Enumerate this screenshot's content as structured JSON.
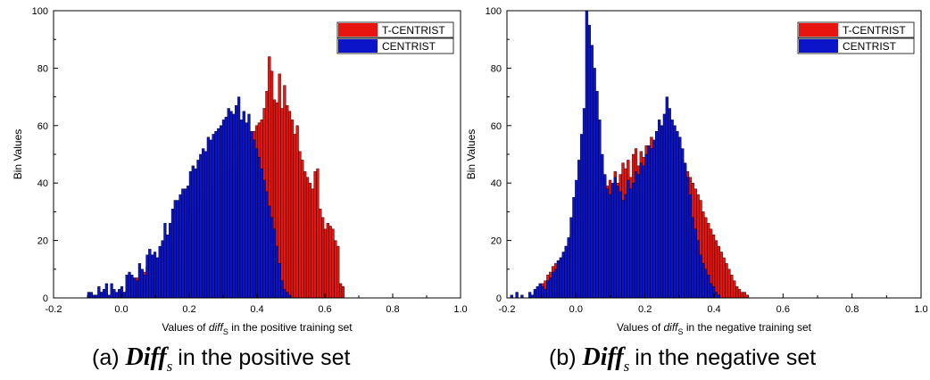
{
  "chart_data": [
    {
      "type": "bar",
      "panel": "a",
      "xlabel_prefix": "Values of ",
      "xlabel_var": "diff",
      "xlabel_sub": "S",
      "xlabel_suffix": " in the positive training set",
      "ylabel": "Bin Values",
      "xlim": [
        -0.2,
        1.0
      ],
      "ylim": [
        0,
        100
      ],
      "xticks": [
        "-0.2",
        "0.0",
        "0.2",
        "0.4",
        "0.6",
        "0.8",
        "1.0"
      ],
      "yticks": [
        "0",
        "20",
        "40",
        "60",
        "80",
        "100"
      ],
      "legend_position": "top-right",
      "bin_start": -0.1,
      "bin_width": 0.0075,
      "series": [
        {
          "name": "T-CENTRIST",
          "color": "#e8140f",
          "values": [
            1,
            1,
            0,
            1,
            0,
            2,
            1,
            2,
            0,
            1,
            0,
            1,
            1,
            2,
            2,
            4,
            3,
            6,
            5,
            7,
            6,
            7,
            9,
            11,
            9,
            12,
            13,
            14,
            13,
            17,
            18,
            19,
            20,
            19,
            22,
            21,
            23,
            24,
            26,
            27,
            28,
            30,
            29,
            31,
            32,
            33,
            34,
            36,
            36,
            38,
            39,
            40,
            41,
            42,
            43,
            44,
            45,
            46,
            47,
            48,
            50,
            52,
            53,
            55,
            57,
            58,
            60,
            61,
            62,
            66,
            72,
            84,
            79,
            69,
            68,
            78,
            66,
            74,
            67,
            65,
            62,
            57,
            60,
            51,
            48,
            44,
            42,
            40,
            38,
            44,
            45,
            31,
            28,
            24,
            26,
            25,
            24,
            20,
            18,
            5,
            4,
            0
          ]
        },
        {
          "name": "CENTRIST",
          "color": "#0b14c8",
          "values": [
            2,
            2,
            1,
            1,
            4,
            2,
            3,
            5,
            1,
            5,
            3,
            2,
            3,
            4,
            2,
            8,
            9,
            8,
            7,
            6,
            12,
            10,
            8,
            15,
            17,
            15,
            16,
            14,
            18,
            20,
            26,
            22,
            26,
            31,
            34,
            34,
            36,
            38,
            38,
            39,
            44,
            46,
            45,
            48,
            50,
            52,
            51,
            56,
            55,
            57,
            58,
            59,
            60,
            62,
            63,
            66,
            65,
            64,
            67,
            70,
            62,
            65,
            61,
            64,
            58,
            55,
            52,
            49,
            45,
            41,
            37,
            32,
            28,
            24,
            18,
            12,
            6,
            3,
            2,
            1,
            0,
            0,
            0,
            0,
            0,
            0,
            0,
            0,
            0,
            0,
            0,
            0,
            0,
            0,
            0,
            0,
            0,
            0,
            0,
            0,
            0,
            0
          ]
        }
      ]
    },
    {
      "type": "bar",
      "panel": "b",
      "xlabel_prefix": "Values of ",
      "xlabel_var": "diff",
      "xlabel_sub": "S",
      "xlabel_suffix": " in the negative training set",
      "ylabel": "Bin Values",
      "xlim": [
        -0.2,
        1.0
      ],
      "ylim": [
        0,
        100
      ],
      "xticks": [
        "-0.2",
        "0.0",
        "0.2",
        "0.4",
        "0.6",
        "0.8",
        "1.0"
      ],
      "yticks": [
        "0",
        "20",
        "40",
        "60",
        "80",
        "100"
      ],
      "legend_position": "top-right",
      "bin_start": -0.19,
      "bin_width": 0.0075,
      "series": [
        {
          "name": "T-CENTRIST",
          "color": "#e8140f",
          "values": [
            0,
            0,
            0,
            0,
            0,
            0,
            0,
            0,
            1,
            2,
            3,
            4,
            5,
            6,
            8,
            9,
            11,
            12,
            13,
            14,
            15,
            18,
            20,
            22,
            25,
            28,
            24,
            27,
            30,
            33,
            35,
            32,
            37,
            34,
            40,
            37,
            42,
            39,
            41,
            38,
            44,
            40,
            43,
            47,
            45,
            48,
            42,
            50,
            52,
            46,
            51,
            49,
            53,
            50,
            56,
            52,
            58,
            54,
            60,
            55,
            57,
            53,
            56,
            52,
            54,
            50,
            48,
            46,
            44,
            42,
            40,
            38,
            36,
            34,
            30,
            28,
            26,
            24,
            22,
            20,
            18,
            16,
            14,
            12,
            10,
            8,
            6,
            4,
            3,
            2,
            2,
            1,
            0,
            0,
            0,
            0,
            0,
            0,
            0,
            0,
            0,
            0,
            0,
            0,
            0,
            0,
            0,
            0,
            0,
            0,
            0,
            0,
            0,
            0,
            0,
            0,
            0,
            0,
            0,
            0,
            0,
            0,
            0,
            0,
            0,
            0,
            0,
            0,
            0,
            0,
            0,
            0,
            0,
            0,
            0,
            0,
            0,
            0,
            0,
            0,
            0,
            0,
            0,
            0,
            0,
            0,
            0,
            0,
            0,
            0,
            0,
            0,
            0,
            0,
            0,
            0
          ]
        },
        {
          "name": "CENTRIST",
          "color": "#0b14c8",
          "values": [
            1,
            0,
            2,
            0,
            1,
            0,
            0,
            2,
            1,
            3,
            4,
            5,
            4,
            3,
            6,
            7,
            9,
            10,
            13,
            14,
            16,
            18,
            21,
            28,
            35,
            41,
            48,
            57,
            66,
            100,
            95,
            88,
            80,
            72,
            62,
            50,
            43,
            38,
            36,
            40,
            42,
            39,
            37,
            34,
            36,
            41,
            38,
            40,
            44,
            43,
            47,
            46,
            50,
            53,
            52,
            55,
            58,
            62,
            60,
            64,
            70,
            66,
            62,
            60,
            58,
            56,
            52,
            47,
            42,
            36,
            28,
            24,
            20,
            15,
            12,
            10,
            8,
            5,
            4,
            2,
            1,
            0,
            0,
            0,
            0,
            0,
            0,
            0,
            0,
            0,
            0,
            0,
            0,
            0,
            0,
            0,
            0,
            0,
            0,
            0,
            0,
            0,
            0,
            0,
            0,
            0,
            0,
            0,
            0,
            0,
            0,
            0,
            0,
            0,
            0,
            0,
            0,
            0,
            0,
            0,
            0,
            0,
            0,
            0,
            0,
            0,
            0,
            0,
            0,
            0,
            0,
            0,
            0,
            0,
            0,
            0,
            0,
            0,
            0,
            0,
            0,
            0,
            0,
            0,
            0,
            0,
            0,
            0,
            0,
            0,
            0,
            0,
            0,
            0,
            0,
            0
          ]
        }
      ]
    }
  ],
  "captions": {
    "a": {
      "prefix": "(a)  ",
      "sym": "Diff",
      "sub": "s",
      "suffix": "in the positive set"
    },
    "b": {
      "prefix": "(b)  ",
      "sym": "Diff",
      "sub": "s",
      "suffix": "in the negative set"
    }
  }
}
